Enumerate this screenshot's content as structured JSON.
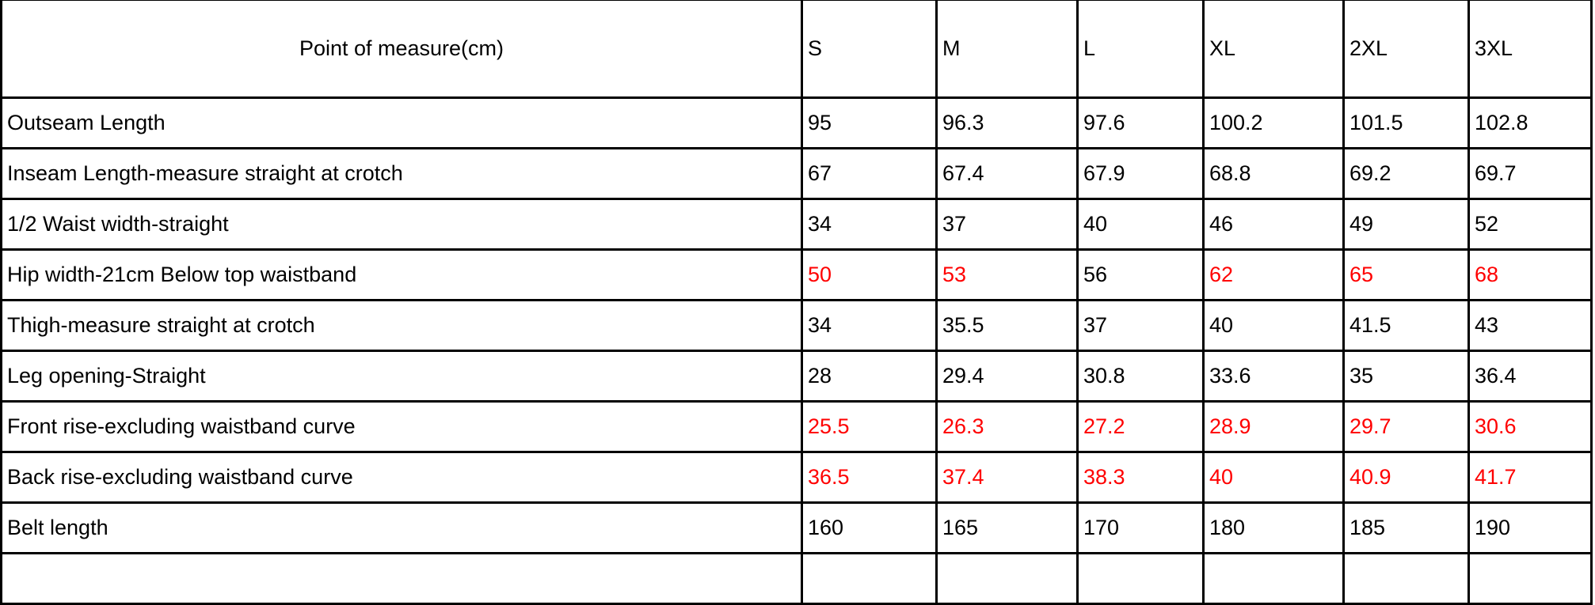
{
  "table": {
    "header": [
      "Point of measure(cm)",
      "S",
      "M",
      "L",
      "XL",
      "2XL",
      "3XL"
    ],
    "rows": [
      {
        "label": "Outseam Length",
        "values": [
          "95",
          "96.3",
          "97.6",
          "100.2",
          "101.5",
          "102.8"
        ],
        "red": [
          false,
          false,
          false,
          false,
          false,
          false
        ]
      },
      {
        "label": "Inseam Length-measure straight at crotch",
        "values": [
          "67",
          "67.4",
          "67.9",
          "68.8",
          "69.2",
          "69.7"
        ],
        "red": [
          false,
          false,
          false,
          false,
          false,
          false
        ]
      },
      {
        "label": "1/2 Waist width-straight",
        "values": [
          "34",
          "37",
          "40",
          "46",
          "49",
          "52"
        ],
        "red": [
          false,
          false,
          false,
          false,
          false,
          false
        ]
      },
      {
        "label": "Hip width-21cm Below top waistband",
        "values": [
          "50",
          "53",
          "56",
          "62",
          "65",
          "68"
        ],
        "red": [
          true,
          true,
          false,
          true,
          true,
          true
        ]
      },
      {
        "label": "Thigh-measure straight at crotch",
        "values": [
          "34",
          "35.5",
          "37",
          "40",
          "41.5",
          "43"
        ],
        "red": [
          false,
          false,
          false,
          false,
          false,
          false
        ]
      },
      {
        "label": "Leg opening-Straight",
        "values": [
          "28",
          "29.4",
          "30.8",
          "33.6",
          "35",
          "36.4"
        ],
        "red": [
          false,
          false,
          false,
          false,
          false,
          false
        ]
      },
      {
        "label": "Front rise-excluding waistband curve",
        "values": [
          "25.5",
          "26.3",
          "27.2",
          "28.9",
          "29.7",
          "30.6"
        ],
        "red": [
          true,
          true,
          true,
          true,
          true,
          true
        ]
      },
      {
        "label": "Back rise-excluding waistband curve",
        "values": [
          "36.5",
          "37.4",
          "38.3",
          "40",
          "40.9",
          "41.7"
        ],
        "red": [
          true,
          true,
          true,
          true,
          true,
          true
        ]
      },
      {
        "label": "Belt length",
        "values": [
          "160",
          "165",
          "170",
          "180",
          "185",
          "190"
        ],
        "red": [
          false,
          false,
          false,
          false,
          false,
          false
        ]
      }
    ],
    "highlight_color": "#ff0000"
  }
}
